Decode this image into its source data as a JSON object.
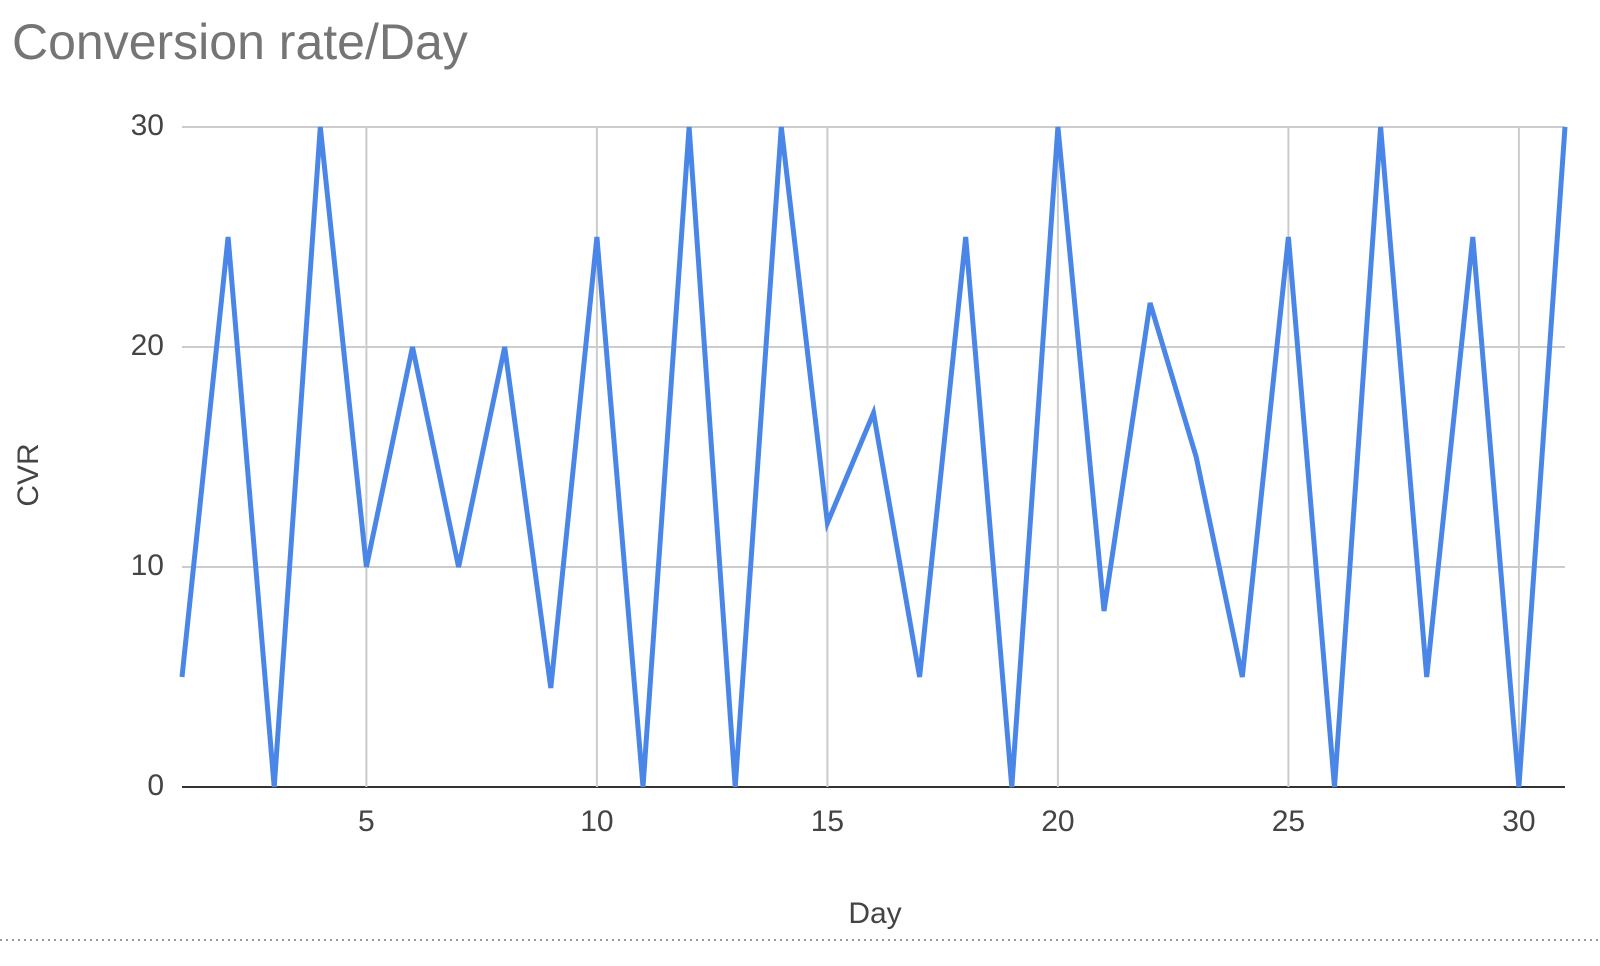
{
  "chart_data": {
    "type": "line",
    "title": "Conversion rate/Day",
    "x_label": "Day",
    "y_label": "CVR",
    "x": [
      1,
      2,
      3,
      4,
      5,
      6,
      7,
      8,
      9,
      10,
      11,
      12,
      13,
      14,
      15,
      16,
      17,
      18,
      19,
      20,
      21,
      22,
      23,
      24,
      25,
      26,
      27,
      28,
      29,
      30,
      31
    ],
    "series": [
      {
        "name": "CVR",
        "color": "#4a86e8",
        "values": [
          5,
          25,
          0,
          30,
          10,
          20,
          10,
          20,
          4.5,
          25,
          0,
          30,
          0,
          30,
          12,
          17,
          5,
          25,
          0,
          30,
          8,
          22,
          15,
          5,
          25,
          0,
          30,
          5,
          25,
          0,
          30
        ]
      }
    ],
    "xlim": [
      1,
      31
    ],
    "xticks": [
      5,
      10,
      15,
      20,
      25,
      30
    ],
    "ylim": [
      0,
      30
    ],
    "yticks": [
      0,
      10,
      20,
      30
    ],
    "grid": true
  }
}
